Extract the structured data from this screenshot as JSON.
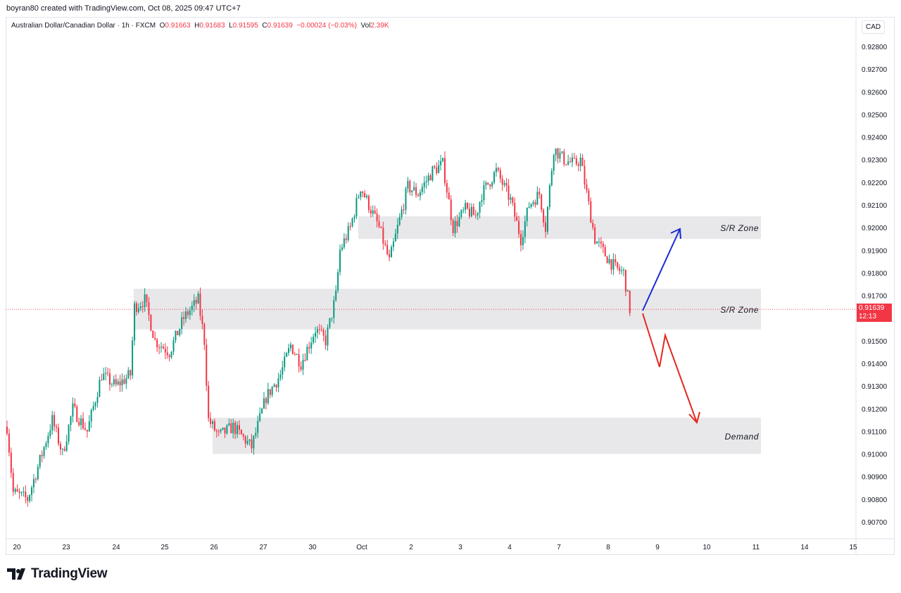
{
  "credit": "boyran80 created with TradingView.com, Oct 08, 2025 09:47 UTC+7",
  "legend": {
    "symbol": "Australian Dollar/Canadian Dollar · 1h · FXCM",
    "o_label": "O",
    "o": "0.91663",
    "h_label": "H",
    "h": "0.91683",
    "l_label": "L",
    "l": "0.91595",
    "c_label": "C",
    "c": "0.91639",
    "change": "−0.00024 (−0.03%)",
    "vol_label": "Vol",
    "vol": "2.39K"
  },
  "currency": "CAD",
  "last_price": {
    "price": "0.91639",
    "countdown": "12:13"
  },
  "brand": "TradingView",
  "colors": {
    "up": "#089981",
    "down": "#f23645",
    "zone": "#e8e8ea",
    "bull_arrow": "#1a2bd6",
    "bear_arrow": "#e5281f"
  },
  "chart_data": {
    "type": "candlestick",
    "title": "Australian Dollar/Canadian Dollar · 1h · FXCM",
    "ylim": [
      0.9064,
      0.9293
    ],
    "y_ticks": [
      "0.92800",
      "0.92700",
      "0.92600",
      "0.92500",
      "0.92400",
      "0.92300",
      "0.92200",
      "0.92100",
      "0.92000",
      "0.91900",
      "0.91800",
      "0.91700",
      "0.91500",
      "0.91400",
      "0.91300",
      "0.91200",
      "0.91100",
      "0.91000",
      "0.90900",
      "0.90800",
      "0.90700"
    ],
    "x_ticks": [
      "20",
      "23",
      "24",
      "25",
      "26",
      "27",
      "30",
      "Oct",
      "2",
      "3",
      "4",
      "7",
      "8",
      "9",
      "10",
      "11",
      "14",
      "15"
    ],
    "zones": [
      {
        "label": "S/R Zone",
        "low": 0.9195,
        "high": 0.9205
      },
      {
        "label": "S/R Zone",
        "low": 0.9155,
        "high": 0.9173
      },
      {
        "label": "Demand",
        "low": 0.91,
        "high": 0.9116
      }
    ],
    "price_path": [
      [
        0,
        0.9112
      ],
      [
        3,
        0.9083
      ],
      [
        10,
        0.908
      ],
      [
        17,
        0.91
      ],
      [
        22,
        0.9115
      ],
      [
        27,
        0.91
      ],
      [
        32,
        0.912
      ],
      [
        39,
        0.911
      ],
      [
        46,
        0.9135
      ],
      [
        53,
        0.913
      ],
      [
        60,
        0.9135
      ],
      [
        62,
        0.9165
      ],
      [
        67,
        0.9168
      ],
      [
        72,
        0.915
      ],
      [
        79,
        0.9145
      ],
      [
        86,
        0.916
      ],
      [
        93,
        0.9168
      ],
      [
        96,
        0.915
      ],
      [
        98,
        0.9115
      ],
      [
        103,
        0.9108
      ],
      [
        110,
        0.9112
      ],
      [
        119,
        0.9103
      ],
      [
        126,
        0.9125
      ],
      [
        133,
        0.9135
      ],
      [
        138,
        0.9148
      ],
      [
        143,
        0.914
      ],
      [
        150,
        0.9155
      ],
      [
        155,
        0.915
      ],
      [
        160,
        0.917
      ],
      [
        162,
        0.919
      ],
      [
        167,
        0.92
      ],
      [
        172,
        0.9218
      ],
      [
        176,
        0.921
      ],
      [
        181,
        0.92
      ],
      [
        186,
        0.9185
      ],
      [
        190,
        0.92
      ],
      [
        195,
        0.9218
      ],
      [
        200,
        0.9215
      ],
      [
        207,
        0.9225
      ],
      [
        212,
        0.9228
      ],
      [
        217,
        0.92
      ],
      [
        223,
        0.9208
      ],
      [
        228,
        0.9205
      ],
      [
        231,
        0.9215
      ],
      [
        238,
        0.9225
      ],
      [
        245,
        0.9212
      ],
      [
        250,
        0.9195
      ],
      [
        254,
        0.921
      ],
      [
        259,
        0.9215
      ],
      [
        262,
        0.92
      ],
      [
        266,
        0.9235
      ],
      [
        271,
        0.923
      ],
      [
        276,
        0.9228
      ],
      [
        279,
        0.923
      ],
      [
        283,
        0.921
      ],
      [
        286,
        0.9195
      ],
      [
        291,
        0.9188
      ],
      [
        296,
        0.9182
      ],
      [
        300,
        0.918
      ],
      [
        303,
        0.91639
      ]
    ]
  }
}
